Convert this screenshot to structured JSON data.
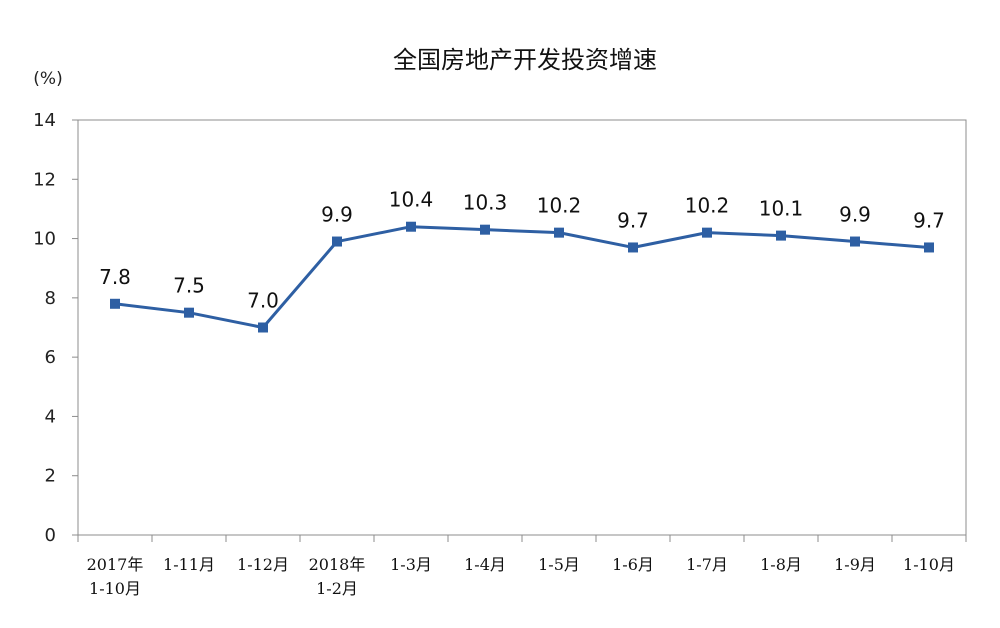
{
  "chart_data": {
    "type": "line",
    "title": "全国房地产开发投资增速",
    "unit_label": "(%)",
    "ylim": [
      0,
      14
    ],
    "yticks": [
      "0",
      "2",
      "4",
      "6",
      "8",
      "10",
      "12",
      "14"
    ],
    "grid": false,
    "categories": [
      [
        "2017年",
        "1-10月"
      ],
      [
        "1-11月"
      ],
      [
        "1-12月"
      ],
      [
        "2018年",
        "1-2月"
      ],
      [
        "1-3月"
      ],
      [
        "1-4月"
      ],
      [
        "1-5月"
      ],
      [
        "1-6月"
      ],
      [
        "1-7月"
      ],
      [
        "1-8月"
      ],
      [
        "1-9月"
      ],
      [
        "1-10月"
      ]
    ],
    "series": [
      {
        "values": [
          7.8,
          7.5,
          7.0,
          9.9,
          10.4,
          10.3,
          10.2,
          9.7,
          10.2,
          10.1,
          9.9,
          9.7
        ],
        "data_labels": [
          "7.8",
          "7.5",
          "7.0",
          "9.9",
          "10.4",
          "10.3",
          "10.2",
          "9.7",
          "10.2",
          "10.1",
          "9.9",
          "9.7"
        ],
        "color": "#2e5fa3"
      }
    ],
    "colors": {
      "axis": "#8c8c8c",
      "line": "#2e5fa3",
      "marker": "#2e5fa3"
    }
  }
}
